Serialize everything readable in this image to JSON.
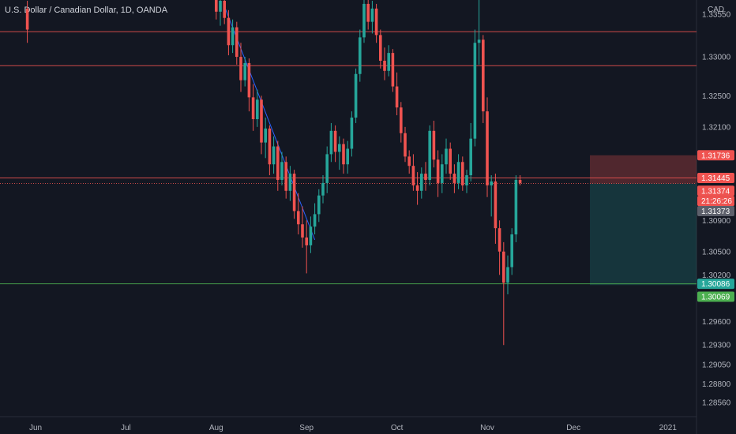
{
  "header": {
    "title": "U.S. Dollar / Canadian Dollar, 1D, OANDA",
    "currency": "CAD"
  },
  "colors": {
    "background": "#131722",
    "up": "#26a69a",
    "down": "#ef5350",
    "hline_red": "#ef5350",
    "hline_green": "#4caf50",
    "trend": "#2962ff",
    "axis_text": "#b2b5be"
  },
  "chart_data": {
    "type": "candlestick",
    "ylim": [
      1.2838,
      1.3373
    ],
    "y_ticks": [
      1.3355,
      1.33,
      1.325,
      1.321,
      1.309,
      1.305,
      1.302,
      1.296,
      1.293,
      1.2905,
      1.288,
      1.2856
    ],
    "x_ticks": [
      {
        "label": "Jun",
        "index": -80
      },
      {
        "label": "Jul",
        "index": -58
      },
      {
        "label": "Aug",
        "index": -36
      },
      {
        "label": "Sep",
        "index": -14
      },
      {
        "label": "Oct",
        "index": 8
      },
      {
        "label": "Nov",
        "index": 30
      },
      {
        "label": "Dec",
        "index": 51
      },
      {
        "label": "2021",
        "index": 74
      }
    ],
    "h_lines": [
      {
        "price": 1.33323,
        "label": "1.33323",
        "color": "red",
        "style": "solid"
      },
      {
        "price": 1.32887,
        "label": "1.32887",
        "color": "red",
        "style": "solid"
      },
      {
        "price": 1.31445,
        "label": "1.31445",
        "color": "red",
        "style": "solid"
      },
      {
        "price": 1.31374,
        "label": "1.31374",
        "color": "red",
        "style": "dotted"
      },
      {
        "price": 1.30086,
        "label": "1.30086",
        "color": "green",
        "style": "solid"
      }
    ],
    "price_tags": [
      {
        "price": 1.31736,
        "label": "1.31736",
        "color": "#ef5350"
      },
      {
        "price": 1.31445,
        "label": "1.31445",
        "color": "#ef5350"
      },
      {
        "price": 1.3128,
        "label": "1.31374",
        "color": "#ef5350"
      },
      {
        "price": 1.3115,
        "label": "21:26:26",
        "color": "#ef5350"
      },
      {
        "price": 1.3102,
        "label": "1.31373",
        "color": "#5d606b"
      },
      {
        "price": 1.30086,
        "label": "1.30086",
        "color": "#26a69a"
      },
      {
        "price": 1.2992,
        "label": "1.30069",
        "color": "#4caf50"
      }
    ],
    "position": {
      "start_index": 55,
      "entry": 1.31374,
      "stop": 1.31736,
      "target": 1.30069
    },
    "trend_line": {
      "from": {
        "index": -34,
        "price": 1.3365
      },
      "to": {
        "index": -12,
        "price": 1.3065
      }
    },
    "candles": [
      [
        -82,
        1.3362,
        1.3372,
        1.3318,
        1.3335
      ],
      [
        -36,
        1.3375,
        1.3385,
        1.3348,
        1.3358
      ],
      [
        -35,
        1.3358,
        1.3382,
        1.334,
        1.3372
      ],
      [
        -34,
        1.3372,
        1.3378,
        1.3342,
        1.335
      ],
      [
        -33,
        1.335,
        1.336,
        1.3302,
        1.3315
      ],
      [
        -32,
        1.3315,
        1.3348,
        1.3305,
        1.3338
      ],
      [
        -31,
        1.3338,
        1.3345,
        1.329,
        1.33
      ],
      [
        -30,
        1.33,
        1.3318,
        1.3255,
        1.327
      ],
      [
        -29,
        1.327,
        1.33,
        1.3262,
        1.3292
      ],
      [
        -28,
        1.3292,
        1.3298,
        1.323,
        1.3248
      ],
      [
        -27,
        1.3248,
        1.3265,
        1.3205,
        1.322
      ],
      [
        -26,
        1.322,
        1.3258,
        1.321,
        1.3245
      ],
      [
        -25,
        1.3245,
        1.325,
        1.3175,
        1.319
      ],
      [
        -24,
        1.319,
        1.3222,
        1.317,
        1.3208
      ],
      [
        -23,
        1.3208,
        1.3212,
        1.3148,
        1.3162
      ],
      [
        -22,
        1.3162,
        1.3198,
        1.315,
        1.3185
      ],
      [
        -21,
        1.3185,
        1.3192,
        1.3128,
        1.3142
      ],
      [
        -20,
        1.3142,
        1.3178,
        1.3135,
        1.3165
      ],
      [
        -19,
        1.3165,
        1.3172,
        1.3118,
        1.3128
      ],
      [
        -18,
        1.3128,
        1.316,
        1.3115,
        1.315
      ],
      [
        -17,
        1.315,
        1.3155,
        1.3092,
        1.3102
      ],
      [
        -16,
        1.3102,
        1.3125,
        1.3072,
        1.3085
      ],
      [
        -15,
        1.3085,
        1.3108,
        1.3055,
        1.3068
      ],
      [
        -14,
        1.3068,
        1.309,
        1.3022,
        1.3058
      ],
      [
        -13,
        1.3058,
        1.3095,
        1.3048,
        1.3082
      ],
      [
        -12,
        1.3082,
        1.3112,
        1.3072,
        1.3098
      ],
      [
        -11,
        1.3098,
        1.313,
        1.3088,
        1.3122
      ],
      [
        -10,
        1.3122,
        1.3148,
        1.3112,
        1.3138
      ],
      [
        -9,
        1.3138,
        1.3185,
        1.3125,
        1.3175
      ],
      [
        -8,
        1.3175,
        1.3215,
        1.3165,
        1.3205
      ],
      [
        -7,
        1.3205,
        1.3212,
        1.3165,
        1.3178
      ],
      [
        -6,
        1.3178,
        1.3198,
        1.3155,
        1.3188
      ],
      [
        -5,
        1.3188,
        1.3195,
        1.315,
        1.3162
      ],
      [
        -4,
        1.3162,
        1.3192,
        1.315,
        1.3182
      ],
      [
        -3,
        1.3182,
        1.323,
        1.3172,
        1.3222
      ],
      [
        -2,
        1.3222,
        1.3285,
        1.3215,
        1.3278
      ],
      [
        -1,
        1.3278,
        1.3335,
        1.3268,
        1.3325
      ],
      [
        0,
        1.3325,
        1.338,
        1.3318,
        1.3368
      ],
      [
        1,
        1.3368,
        1.3378,
        1.3335,
        1.3345
      ],
      [
        2,
        1.3345,
        1.3372,
        1.333,
        1.3362
      ],
      [
        3,
        1.3362,
        1.3368,
        1.3318,
        1.3328
      ],
      [
        4,
        1.3328,
        1.3335,
        1.3285,
        1.3295
      ],
      [
        5,
        1.3295,
        1.3312,
        1.327,
        1.3282
      ],
      [
        6,
        1.3282,
        1.3315,
        1.3275,
        1.3305
      ],
      [
        7,
        1.3305,
        1.331,
        1.3255,
        1.3262
      ],
      [
        8,
        1.3262,
        1.328,
        1.3225,
        1.3235
      ],
      [
        9,
        1.3235,
        1.3242,
        1.319,
        1.3202
      ],
      [
        10,
        1.3202,
        1.321,
        1.3165,
        1.3172
      ],
      [
        11,
        1.3172,
        1.318,
        1.315,
        1.316
      ],
      [
        12,
        1.316,
        1.3175,
        1.3128,
        1.3135
      ],
      [
        13,
        1.3135,
        1.3152,
        1.311,
        1.3128
      ],
      [
        14,
        1.3128,
        1.3158,
        1.3118,
        1.315
      ],
      [
        15,
        1.315,
        1.3165,
        1.3128,
        1.3142
      ],
      [
        16,
        1.3142,
        1.3212,
        1.3135,
        1.3205
      ],
      [
        17,
        1.3205,
        1.3218,
        1.3158,
        1.3168
      ],
      [
        18,
        1.3168,
        1.318,
        1.312,
        1.3138
      ],
      [
        19,
        1.3138,
        1.3175,
        1.3125,
        1.3162
      ],
      [
        20,
        1.3162,
        1.3195,
        1.315,
        1.3182
      ],
      [
        21,
        1.3182,
        1.319,
        1.3142,
        1.315
      ],
      [
        22,
        1.315,
        1.3162,
        1.3125,
        1.3138
      ],
      [
        23,
        1.3138,
        1.3175,
        1.313,
        1.3165
      ],
      [
        24,
        1.3165,
        1.3172,
        1.3128,
        1.3135
      ],
      [
        25,
        1.3135,
        1.3155,
        1.3125,
        1.3148
      ],
      [
        26,
        1.3148,
        1.3215,
        1.314,
        1.3195
      ],
      [
        27,
        1.3195,
        1.3335,
        1.3185,
        1.3318
      ],
      [
        28,
        1.3318,
        1.3385,
        1.329,
        1.3322
      ],
      [
        29,
        1.3322,
        1.3328,
        1.3215,
        1.323
      ],
      [
        30,
        1.323,
        1.3248,
        1.312,
        1.3135
      ],
      [
        31,
        1.3135,
        1.3148,
        1.3095,
        1.314
      ],
      [
        32,
        1.314,
        1.315,
        1.306,
        1.308
      ],
      [
        33,
        1.308,
        1.309,
        1.302,
        1.305
      ],
      [
        34,
        1.305,
        1.3062,
        1.293,
        1.301
      ],
      [
        35,
        1.301,
        1.3045,
        1.2995,
        1.303
      ],
      [
        36,
        1.303,
        1.308,
        1.302,
        1.3072
      ],
      [
        37,
        1.3072,
        1.3148,
        1.3062,
        1.3142
      ],
      [
        38,
        1.3142,
        1.3148,
        1.3135,
        1.3138
      ]
    ]
  }
}
